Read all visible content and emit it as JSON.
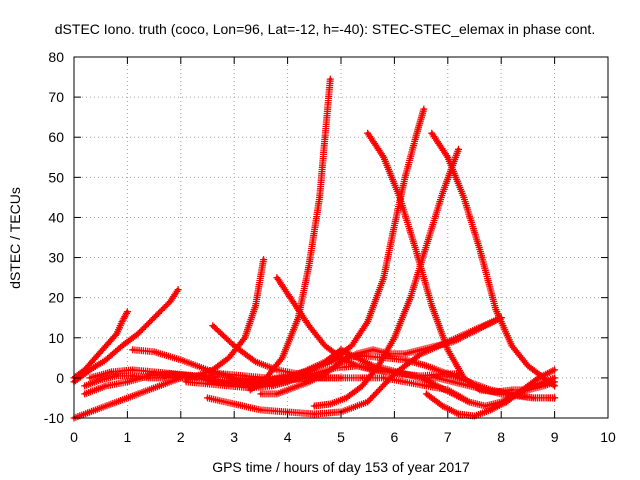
{
  "chart_data": {
    "type": "scatter",
    "title": "dSTEC Iono. truth (coco, Lon=96, Lat=-12, h=-40): STEC-STEC_elemax in phase cont.",
    "xlabel": "GPS time / hours of day 153 of year 2017",
    "ylabel": "dSTEC  / TECUs",
    "xlim": [
      0,
      10
    ],
    "ylim": [
      -10,
      80
    ],
    "xticks": [
      "0",
      "1",
      "2",
      "3",
      "4",
      "5",
      "6",
      "7",
      "8",
      "9",
      "10"
    ],
    "yticks": [
      "-10",
      "0",
      "10",
      "20",
      "30",
      "40",
      "50",
      "60",
      "70",
      "80"
    ],
    "grid": true,
    "marker": "plus",
    "color": "#ff0000",
    "series": [
      {
        "x": [
          0,
          0.2,
          0.4,
          0.6,
          0.8,
          0.9,
          1.0
        ],
        "y": [
          0,
          2,
          5,
          8,
          11,
          14,
          16.5
        ]
      },
      {
        "x": [
          0,
          0.3,
          0.6,
          0.9,
          1.2,
          1.5,
          1.8,
          1.95
        ],
        "y": [
          -1,
          2,
          4.5,
          8,
          11,
          15,
          19,
          22
        ]
      },
      {
        "x": [
          0,
          0.4,
          0.8,
          1.2,
          1.6,
          2.0,
          2.4,
          2.8,
          3.2,
          3.6
        ],
        "y": [
          -10,
          -8,
          -6,
          -4,
          -2,
          0,
          0.5,
          1,
          0.5,
          0
        ]
      },
      {
        "x": [
          0.2,
          0.5,
          0.8,
          1.1,
          1.4,
          1.7,
          2.0,
          2.3,
          2.6,
          2.9,
          3.2,
          3.4,
          3.55
        ],
        "y": [
          -2,
          -0.5,
          0.5,
          0.5,
          0,
          0,
          0,
          0.5,
          2,
          5,
          10,
          18,
          29.5
        ]
      },
      {
        "x": [
          1.1,
          1.5,
          2.0,
          2.5,
          3.0,
          3.5,
          4.0,
          4.5,
          5.0
        ],
        "y": [
          7,
          6.5,
          4.5,
          2,
          0,
          -0.5,
          -0.5,
          0,
          0
        ]
      },
      {
        "x": [
          0.2,
          0.6,
          1.0,
          1.4,
          1.8,
          2.2,
          2.6,
          3.0,
          3.4,
          3.8,
          4.2,
          4.5
        ],
        "y": [
          -4,
          -2,
          -1,
          0.5,
          1,
          0.5,
          -1,
          -1.5,
          -1,
          0,
          1,
          2
        ]
      },
      {
        "x": [
          0.3,
          0.7,
          1.1,
          1.5,
          1.9,
          2.3,
          2.7,
          3.1,
          3.5,
          3.9,
          4.3,
          4.7,
          5.0
        ],
        "y": [
          0,
          1.5,
          2,
          1.5,
          1,
          0.5,
          -0.5,
          -1,
          -1,
          0,
          1.5,
          4,
          7
        ]
      },
      {
        "x": [
          2.1,
          2.5,
          2.9,
          3.3,
          3.7,
          4.1,
          4.5,
          4.9,
          5.3,
          5.7,
          6.1,
          6.5,
          6.9,
          7.2
        ],
        "y": [
          -1,
          -1.5,
          -2,
          -2.5,
          -2,
          -0.5,
          1,
          2.5,
          3,
          2,
          1,
          0.5,
          1,
          1
        ]
      },
      {
        "x": [
          2.5,
          3.0,
          3.5,
          4.0,
          4.5,
          5.0,
          5.5,
          6.0,
          6.5,
          7.0,
          7.5,
          8.0
        ],
        "y": [
          -5,
          -6.5,
          -8,
          -8.5,
          -9,
          -8.5,
          -6,
          1,
          6,
          9,
          12,
          15
        ]
      },
      {
        "x": [
          2.6,
          3.0,
          3.4,
          3.8,
          4.2,
          4.6,
          5.0,
          5.4,
          5.8,
          6.2,
          6.6,
          7.0,
          7.4
        ],
        "y": [
          13,
          8,
          4,
          2,
          1,
          0,
          0,
          0,
          0,
          -1,
          -2,
          -3,
          -6
        ]
      },
      {
        "x": [
          3.0,
          3.4,
          3.8,
          4.2,
          4.6,
          5.0,
          5.4,
          5.8,
          6.2,
          6.6,
          7.0,
          7.4,
          7.8,
          8.2,
          8.6,
          9.0
        ],
        "y": [
          -1,
          -2,
          -1,
          1,
          3,
          5,
          5.5,
          5,
          4.5,
          3,
          1,
          -1,
          -3,
          -4,
          -5,
          -5
        ]
      },
      {
        "x": [
          3.3,
          3.6,
          3.9,
          4.2,
          4.4,
          4.6,
          4.7,
          4.8
        ],
        "y": [
          -3,
          0,
          5,
          15,
          28,
          45,
          60,
          74.5
        ]
      },
      {
        "x": [
          3.5,
          3.8,
          4.1,
          4.4,
          4.7,
          5.0,
          5.3,
          5.6,
          5.9,
          6.2,
          6.5,
          6.8,
          7.1,
          7.4,
          7.7,
          8.0
        ],
        "y": [
          -4,
          -4,
          -2.5,
          -1,
          1,
          4,
          6,
          7,
          6,
          6,
          7,
          8,
          9,
          11,
          13,
          15
        ]
      },
      {
        "x": [
          3.7,
          4.0,
          4.3,
          4.6,
          4.9,
          5.2,
          5.5,
          5.8,
          6.0,
          6.2,
          6.4,
          6.55
        ],
        "y": [
          -2,
          -1,
          1,
          3,
          5,
          8,
          14,
          25,
          38,
          50,
          60,
          67
        ]
      },
      {
        "x": [
          3.8,
          4.1,
          4.4,
          4.7,
          5.0,
          5.3,
          5.6,
          5.9,
          6.2,
          6.5,
          6.8,
          7.1,
          7.4,
          7.7,
          8.0,
          8.3,
          8.6,
          9.0
        ],
        "y": [
          25,
          19,
          13,
          8,
          5,
          3,
          2,
          1.5,
          1,
          0,
          -2,
          -4,
          -6,
          -7,
          -6,
          -4,
          -2,
          0
        ]
      },
      {
        "x": [
          4.5,
          4.8,
          5.1,
          5.4,
          5.7,
          6.0,
          6.3,
          6.6,
          6.9,
          7.2
        ],
        "y": [
          -7,
          -6.5,
          -5,
          -2,
          3,
          10,
          20,
          33,
          46,
          57
        ]
      },
      {
        "x": [
          5.0,
          5.3,
          5.6,
          5.9,
          6.2,
          6.5,
          6.8,
          7.1,
          7.4,
          7.7,
          8.0,
          8.3,
          8.6,
          9.0
        ],
        "y": [
          7,
          5,
          3,
          2,
          1,
          0,
          0,
          -1,
          -2,
          -3,
          -4,
          -4.5,
          -5,
          -5
        ]
      },
      {
        "x": [
          5.5,
          5.8,
          6.1,
          6.4,
          6.7,
          7.0,
          7.3,
          7.6,
          7.9,
          8.2,
          8.5,
          8.8,
          9.0
        ],
        "y": [
          61,
          55,
          45,
          32,
          18,
          7,
          0,
          -3,
          -3.5,
          -3,
          -3,
          -2,
          -1
        ]
      },
      {
        "x": [
          6.6,
          6.9,
          7.2,
          7.5,
          7.8,
          8.1,
          8.4,
          8.7,
          9.0
        ],
        "y": [
          -4,
          -7,
          -9,
          -9.5,
          -8,
          -6,
          -3,
          0,
          2
        ]
      },
      {
        "x": [
          6.7,
          7.0,
          7.3,
          7.6,
          7.9,
          8.2,
          8.5,
          8.8,
          9.0
        ],
        "y": [
          61,
          55,
          45,
          32,
          17,
          8,
          3,
          0,
          -2
        ]
      }
    ]
  }
}
